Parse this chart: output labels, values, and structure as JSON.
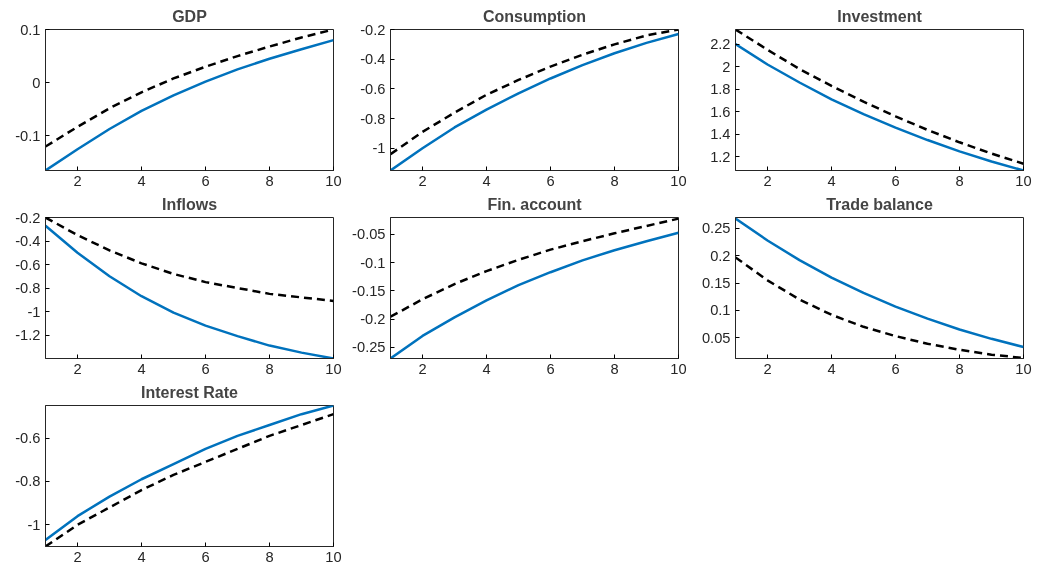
{
  "chart_data": [
    {
      "type": "line",
      "title": "GDP",
      "x": [
        1,
        2,
        3,
        4,
        5,
        6,
        7,
        8,
        9,
        10
      ],
      "xlim": [
        1,
        10
      ],
      "xticks": [
        2,
        4,
        6,
        8,
        10
      ],
      "ylim": [
        -0.165,
        0.1
      ],
      "yticks": [
        -0.1,
        0,
        0.1
      ],
      "grid": false,
      "series": [
        {
          "color": "#0072bd",
          "line_style": "solid",
          "values": [
            -0.165,
            -0.125,
            -0.087,
            -0.053,
            -0.024,
            0.002,
            0.025,
            0.045,
            0.063,
            0.08
          ]
        },
        {
          "color": "#000000",
          "line_style": "dashed",
          "values": [
            -0.12,
            -0.083,
            -0.048,
            -0.018,
            0.008,
            0.03,
            0.05,
            0.068,
            0.085,
            0.1
          ]
        }
      ]
    },
    {
      "type": "line",
      "title": "Consumption",
      "x": [
        1,
        2,
        3,
        4,
        5,
        6,
        7,
        8,
        9,
        10
      ],
      "xlim": [
        1,
        10
      ],
      "xticks": [
        2,
        4,
        6,
        8,
        10
      ],
      "ylim": [
        -1.15,
        -0.2
      ],
      "yticks": [
        -1,
        -0.8,
        -0.6,
        -0.4,
        -0.2
      ],
      "grid": false,
      "series": [
        {
          "color": "#0072bd",
          "line_style": "solid",
          "values": [
            -1.15,
            -1.0,
            -0.86,
            -0.74,
            -0.63,
            -0.53,
            -0.44,
            -0.36,
            -0.29,
            -0.23
          ]
        },
        {
          "color": "#000000",
          "line_style": "dashed",
          "values": [
            -1.04,
            -0.89,
            -0.76,
            -0.64,
            -0.54,
            -0.45,
            -0.37,
            -0.3,
            -0.24,
            -0.2
          ]
        }
      ]
    },
    {
      "type": "line",
      "title": "Investment",
      "x": [
        1,
        2,
        3,
        4,
        5,
        6,
        7,
        8,
        9,
        10
      ],
      "xlim": [
        1,
        10
      ],
      "xticks": [
        2,
        4,
        6,
        8,
        10
      ],
      "ylim": [
        1.08,
        2.33
      ],
      "yticks": [
        1.2,
        1.4,
        1.6,
        1.8,
        2,
        2.2
      ],
      "grid": false,
      "series": [
        {
          "color": "#0072bd",
          "line_style": "solid",
          "values": [
            2.2,
            2.02,
            1.86,
            1.71,
            1.58,
            1.46,
            1.35,
            1.25,
            1.16,
            1.08
          ]
        },
        {
          "color": "#000000",
          "line_style": "dashed",
          "values": [
            2.33,
            2.15,
            1.98,
            1.83,
            1.69,
            1.56,
            1.44,
            1.33,
            1.23,
            1.14
          ]
        }
      ]
    },
    {
      "type": "line",
      "title": "Inflows",
      "x": [
        1,
        2,
        3,
        4,
        5,
        6,
        7,
        8,
        9,
        10
      ],
      "xlim": [
        1,
        10
      ],
      "xticks": [
        2,
        4,
        6,
        8,
        10
      ],
      "ylim": [
        -1.4,
        -0.2
      ],
      "yticks": [
        -1.2,
        -1,
        -0.8,
        -0.6,
        -0.4,
        -0.2
      ],
      "grid": false,
      "series": [
        {
          "color": "#0072bd",
          "line_style": "solid",
          "values": [
            -0.27,
            -0.5,
            -0.7,
            -0.87,
            -1.01,
            -1.12,
            -1.21,
            -1.29,
            -1.35,
            -1.4
          ]
        },
        {
          "color": "#000000",
          "line_style": "dashed",
          "values": [
            -0.2,
            -0.35,
            -0.48,
            -0.59,
            -0.68,
            -0.75,
            -0.8,
            -0.85,
            -0.88,
            -0.91
          ]
        }
      ]
    },
    {
      "type": "line",
      "title": "Fin. account",
      "x": [
        1,
        2,
        3,
        4,
        5,
        6,
        7,
        8,
        9,
        10
      ],
      "xlim": [
        1,
        10
      ],
      "xticks": [
        2,
        4,
        6,
        8,
        10
      ],
      "ylim": [
        -0.27,
        -0.02
      ],
      "yticks": [
        -0.25,
        -0.2,
        -0.15,
        -0.1,
        -0.05
      ],
      "grid": false,
      "series": [
        {
          "color": "#0072bd",
          "line_style": "solid",
          "values": [
            -0.27,
            -0.23,
            -0.197,
            -0.167,
            -0.14,
            -0.117,
            -0.096,
            -0.078,
            -0.062,
            -0.047
          ]
        },
        {
          "color": "#000000",
          "line_style": "dashed",
          "values": [
            -0.196,
            -0.165,
            -0.138,
            -0.115,
            -0.095,
            -0.077,
            -0.062,
            -0.048,
            -0.035,
            -0.022
          ]
        }
      ]
    },
    {
      "type": "line",
      "title": "Trade balance",
      "x": [
        1,
        2,
        3,
        4,
        5,
        6,
        7,
        8,
        9,
        10
      ],
      "xlim": [
        1,
        10
      ],
      "xticks": [
        2,
        4,
        6,
        8,
        10
      ],
      "ylim": [
        0.012,
        0.27
      ],
      "yticks": [
        0.05,
        0.1,
        0.15,
        0.2,
        0.25
      ],
      "grid": false,
      "series": [
        {
          "color": "#0072bd",
          "line_style": "solid",
          "values": [
            0.268,
            0.228,
            0.192,
            0.16,
            0.132,
            0.107,
            0.085,
            0.065,
            0.048,
            0.033
          ]
        },
        {
          "color": "#000000",
          "line_style": "dashed",
          "values": [
            0.197,
            0.155,
            0.12,
            0.092,
            0.07,
            0.053,
            0.039,
            0.028,
            0.019,
            0.013
          ]
        }
      ]
    },
    {
      "type": "line",
      "title": "Interest Rate",
      "x": [
        1,
        2,
        3,
        4,
        5,
        6,
        7,
        8,
        9,
        10
      ],
      "xlim": [
        1,
        10
      ],
      "xticks": [
        2,
        4,
        6,
        8,
        10
      ],
      "ylim": [
        -1.1,
        -0.45
      ],
      "yticks": [
        -1,
        -0.8,
        -0.6
      ],
      "grid": false,
      "series": [
        {
          "color": "#0072bd",
          "line_style": "solid",
          "values": [
            -1.07,
            -0.96,
            -0.87,
            -0.79,
            -0.72,
            -0.65,
            -0.59,
            -0.54,
            -0.49,
            -0.45
          ]
        },
        {
          "color": "#000000",
          "line_style": "dashed",
          "values": [
            -1.1,
            -1.0,
            -0.92,
            -0.84,
            -0.77,
            -0.71,
            -0.65,
            -0.59,
            -0.54,
            -0.49
          ]
        }
      ]
    }
  ]
}
